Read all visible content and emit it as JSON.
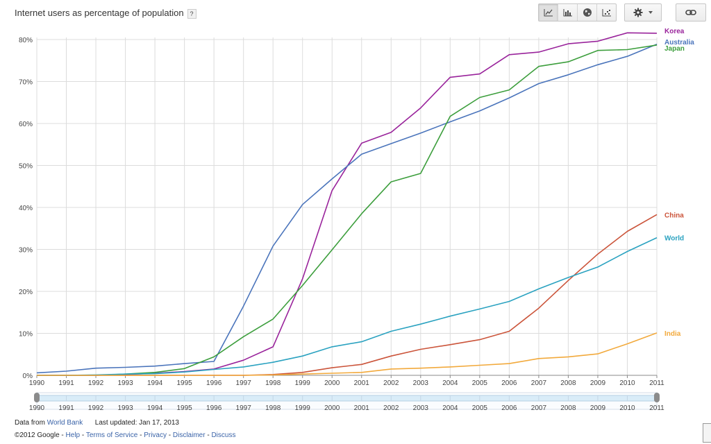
{
  "header": {
    "title": "Internet users as percentage of population",
    "help_label": "?"
  },
  "toolbar": {
    "buttons": [
      {
        "icon": "line-chart-icon",
        "active": true
      },
      {
        "icon": "bar-chart-icon",
        "active": false
      },
      {
        "icon": "globe-map-icon",
        "active": false
      },
      {
        "icon": "scatter-chart-icon",
        "active": false
      }
    ],
    "settings_icon": "gear-icon",
    "link_icon": "link-icon"
  },
  "chart_data": {
    "type": "line",
    "title": "Internet users as percentage of population",
    "xlabel": "",
    "ylabel": "",
    "x": [
      1990,
      1991,
      1992,
      1993,
      1994,
      1995,
      1996,
      1997,
      1998,
      1999,
      2000,
      2001,
      2002,
      2003,
      2004,
      2005,
      2006,
      2007,
      2008,
      2009,
      2010,
      2011
    ],
    "ylim": [
      0,
      80
    ],
    "yticks": [
      0,
      10,
      20,
      30,
      40,
      50,
      60,
      70,
      80
    ],
    "ytick_labels": [
      "0%",
      "10%",
      "20%",
      "30%",
      "40%",
      "50%",
      "60%",
      "70%",
      "80%"
    ],
    "grid": true,
    "legend_position": "right",
    "series": [
      {
        "name": "Korea",
        "color": "#99239b",
        "values": [
          0,
          0,
          0,
          0.2,
          0.5,
          0.9,
          1.5,
          3.6,
          6.8,
          23,
          44,
          55.3,
          57.9,
          63.7,
          71,
          71.8,
          76.4,
          77,
          79,
          79.6,
          81.6,
          81.5
        ]
      },
      {
        "name": "Australia",
        "color": "#4a74bb",
        "values": [
          0.6,
          1,
          1.7,
          1.9,
          2.2,
          2.8,
          3.3,
          16.5,
          30.8,
          40.7,
          46.8,
          52.7,
          55.2,
          57.7,
          60.4,
          63,
          66.1,
          69.5,
          71.6,
          74,
          76,
          78.9
        ]
      },
      {
        "name": "Japan",
        "color": "#3c9e3c",
        "values": [
          0,
          0,
          0,
          0.3,
          0.7,
          1.6,
          4.4,
          9.2,
          13.4,
          21.4,
          29.9,
          38.5,
          46.1,
          48.1,
          61.7,
          66.2,
          68,
          73.6,
          74.7,
          77.4,
          77.6,
          78.7
        ]
      },
      {
        "name": "China",
        "color": "#cb543a",
        "values": [
          0,
          0,
          0,
          0,
          0,
          0,
          0,
          0,
          0.2,
          0.7,
          1.8,
          2.6,
          4.6,
          6.2,
          7.3,
          8.5,
          10.5,
          16,
          22.6,
          28.9,
          34.3,
          38.3
        ]
      },
      {
        "name": "World",
        "color": "#2aa2c0",
        "values": [
          0,
          0,
          0.1,
          0.3,
          0.4,
          0.8,
          1.4,
          2,
          3.1,
          4.6,
          6.8,
          8,
          10.5,
          12.2,
          14.1,
          15.8,
          17.6,
          20.6,
          23.3,
          25.8,
          29.5,
          32.8
        ]
      },
      {
        "name": "India",
        "color": "#f2a93b",
        "values": [
          0,
          0,
          0,
          0,
          0,
          0,
          0,
          0,
          0.1,
          0.3,
          0.5,
          0.7,
          1.5,
          1.7,
          2,
          2.4,
          2.8,
          4,
          4.4,
          5.1,
          7.5,
          10.1
        ]
      }
    ]
  },
  "range_slider": {
    "start": "1990",
    "end": "2011"
  },
  "footer": {
    "data_from_label": "Data from",
    "data_source": "World Bank",
    "last_updated": "Last updated: Jan 17, 2013",
    "copyright": "©2012 Google",
    "sep": " - ",
    "links": [
      "Help",
      "Terms of Service",
      "Privacy",
      "Disclaimer",
      "Discuss"
    ]
  }
}
